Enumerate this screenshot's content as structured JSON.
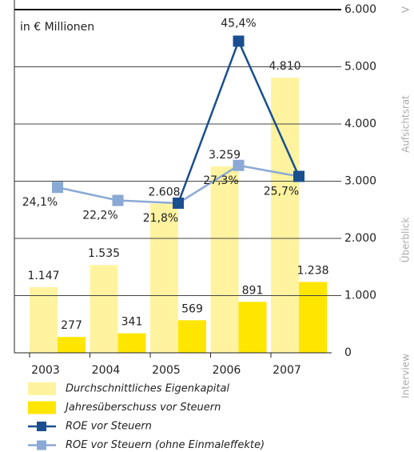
{
  "chart_data": {
    "type": "bar",
    "unit_label": "in € Millionen",
    "categories": [
      "2003",
      "2004",
      "2005",
      "2006",
      "2007"
    ],
    "ylim": [
      0,
      6000
    ],
    "yticks": [
      0,
      {
        "value": 1000,
        "label": "1.000"
      },
      {
        "value": 2000,
        "label": "2.000"
      },
      {
        "value": 3000,
        "label": "3.000"
      },
      {
        "value": 4000,
        "label": "4.000"
      },
      {
        "value": 5000,
        "label": "5.000"
      },
      {
        "value": 6000,
        "label": "6.000"
      }
    ],
    "y2lim": [
      0,
      50
    ],
    "grid": true,
    "series": [
      {
        "name": "Durchschnittliches Eigenkapital",
        "type": "bar",
        "color": "#fff3a0",
        "values": [
          1147,
          1535,
          2608,
          3259,
          4810
        ],
        "value_labels": [
          "1.147",
          "1.535",
          "2.608",
          "3.259",
          "4.810"
        ]
      },
      {
        "name": "Jahresüberschuss vor Steuern",
        "type": "bar",
        "color": "#ffe600",
        "values": [
          277,
          341,
          569,
          891,
          1238
        ],
        "value_labels": [
          "277",
          "341",
          "569",
          "891",
          "1.238"
        ]
      },
      {
        "name": "ROE vor Steuern",
        "type": "line",
        "axis": "y2",
        "color": "#1a4f8f",
        "values": [
          null,
          null,
          21.8,
          45.4,
          25.7
        ],
        "value_labels": [
          null,
          null,
          null,
          "45,4%",
          null
        ]
      },
      {
        "name": "ROE vor Steuern (ohne Einmaleffekte)",
        "type": "line",
        "axis": "y2",
        "color": "#8aa9d4",
        "values": [
          24.1,
          22.2,
          21.8,
          27.3,
          25.7
        ],
        "value_labels": [
          "24,1%",
          "22,2%",
          "21,8%",
          "27,3%",
          "25,7%"
        ]
      }
    ]
  },
  "side_nav": [
    "V",
    "Aufsichtsrat",
    "Überblick",
    "Interview"
  ]
}
